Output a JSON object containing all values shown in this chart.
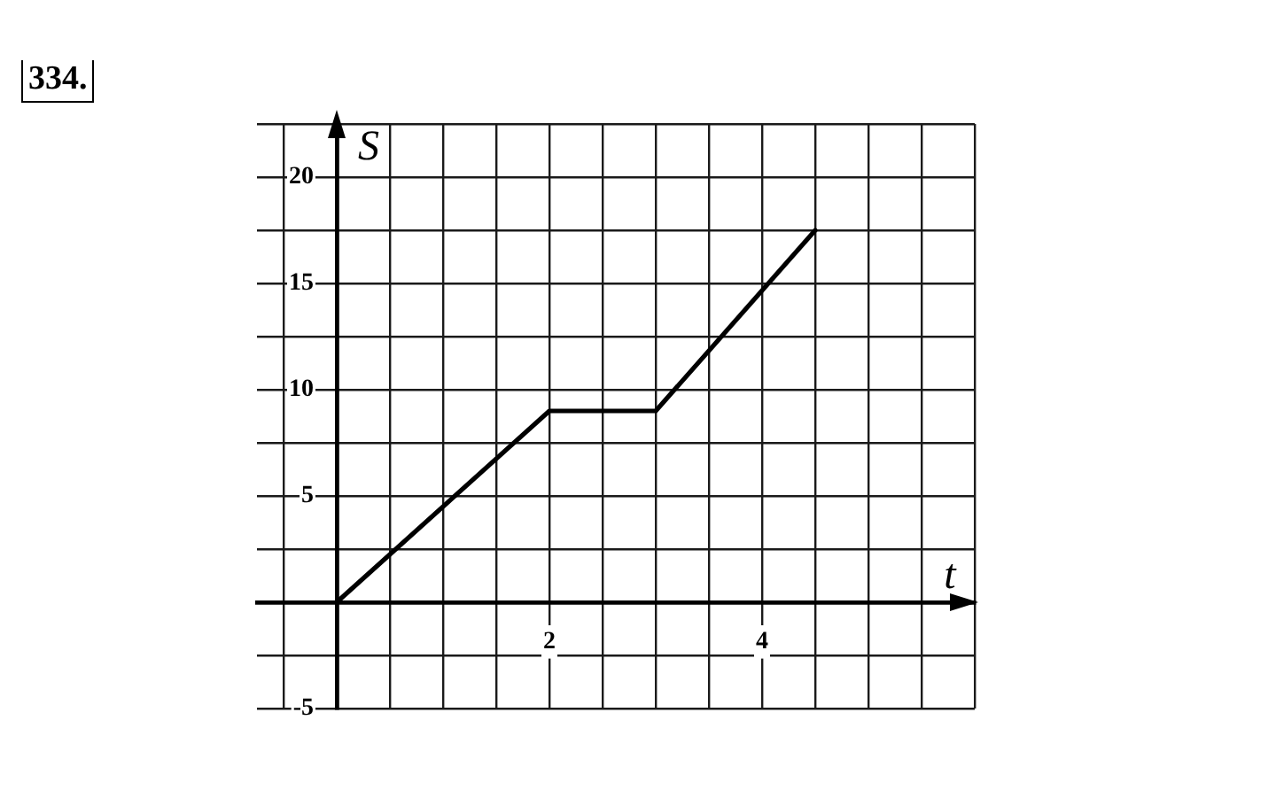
{
  "chart_data": {
    "type": "line",
    "title": "334.",
    "xlabel": "t",
    "ylabel": "S",
    "x": [
      0,
      2,
      3,
      4.5
    ],
    "series": [
      {
        "color": "#000000",
        "values": [
          0,
          9,
          9,
          17.5
        ]
      }
    ],
    "xlim": [
      -0.75,
      6
    ],
    "ylim": [
      -5,
      22.5
    ],
    "xticks": [
      {
        "value": -0.5,
        "label": null
      },
      {
        "value": 0,
        "label": null
      },
      {
        "value": 0.5,
        "label": null
      },
      {
        "value": 1,
        "label": null
      },
      {
        "value": 1.5,
        "label": null
      },
      2,
      {
        "value": 2.5,
        "label": null
      },
      {
        "value": 3,
        "label": null
      },
      {
        "value": 3.5,
        "label": null
      },
      4,
      {
        "value": 4.5,
        "label": null
      },
      {
        "value": 5,
        "label": null
      },
      {
        "value": 5.5,
        "label": null
      },
      {
        "value": 6,
        "label": null
      }
    ],
    "yticks": [
      -5,
      {
        "value": -2.5,
        "label": null
      },
      {
        "value": 0,
        "label": null
      },
      {
        "value": 2.5,
        "label": null
      },
      5,
      {
        "value": 7.5,
        "label": null
      },
      10,
      {
        "value": 12.5,
        "label": null
      },
      15,
      {
        "value": 17.5,
        "label": null
      },
      20,
      {
        "value": 22.5,
        "label": null
      }
    ],
    "grid": true,
    "legend": false,
    "marker": "none"
  }
}
